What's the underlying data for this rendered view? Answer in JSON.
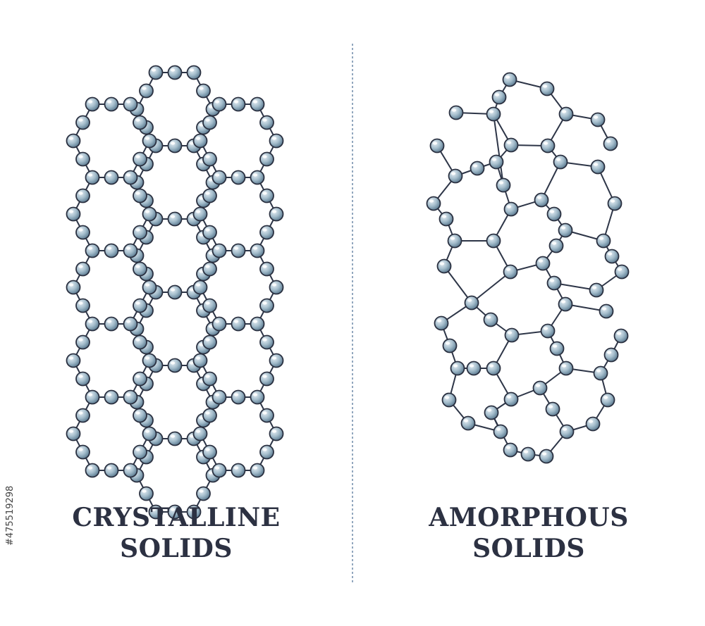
{
  "diagram": {
    "left_panel": {
      "title_line1": "CRYSTALLINE",
      "title_line2": "SOLIDS"
    },
    "right_panel": {
      "title_line1": "AMORPHOUS",
      "title_line2": "SOLIDS"
    }
  },
  "watermark_id": "#475519298",
  "colors": {
    "bond": "#2d3547",
    "atom_light": "#e6eef4",
    "atom_mid": "#a3bccb",
    "atom_dark": "#5e7d93",
    "atom_outline": "#2a3040",
    "divider": "#6f8aa8",
    "title": "#2c3142"
  }
}
